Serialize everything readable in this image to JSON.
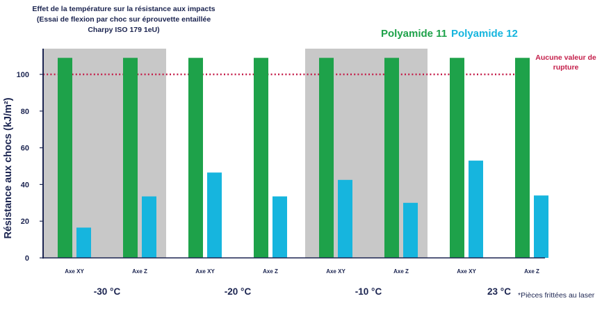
{
  "chart_data": {
    "type": "bar",
    "title": "Effet de la température sur la résistance aux impacts (Essai de flexion par choc sur éprouvette entaillée Charpy ISO 179 1eU)",
    "title_lines": [
      "Effet de la température sur la résistance aux impacts",
      "(Essai de flexion par choc sur éprouvette entaillée",
      "Charpy ISO 179 1eU)"
    ],
    "ylabel": "Résistance aux chocs (kJ/m²)",
    "xlabel": "",
    "ylim": [
      0,
      115
    ],
    "yticks": [
      0,
      20,
      40,
      60,
      80,
      100
    ],
    "groups": [
      {
        "label": "-30 °C",
        "shaded": true
      },
      {
        "label": "-20 °C",
        "shaded": false
      },
      {
        "label": "-10 °C",
        "shaded": true
      },
      {
        "label": "23 °C",
        "shaded": false
      }
    ],
    "categories": [
      "Axe XY",
      "Axe Z",
      "Axe XY",
      "Axe Z",
      "Axe XY",
      "Axe Z",
      "Axe XY",
      "Axe Z"
    ],
    "series": [
      {
        "name": "Polyamide 11",
        "color": "#1ea24a",
        "values": [
          109,
          109,
          109,
          109,
          109,
          109,
          109,
          109
        ]
      },
      {
        "name": "Polyamide 12",
        "color": "#16b5de",
        "values": [
          16.5,
          33.5,
          46.5,
          33.5,
          42.5,
          30,
          53,
          34
        ]
      }
    ],
    "reference_line": {
      "value": 100,
      "label": "Aucune valeur de rupture",
      "label_lines": [
        "Aucune valeur de",
        "rupture"
      ],
      "color": "#c41e4a"
    },
    "annotation": "*Pièces frittées au laser",
    "shade_color": "#c8c8c8",
    "axis_color": "#1b2450"
  }
}
